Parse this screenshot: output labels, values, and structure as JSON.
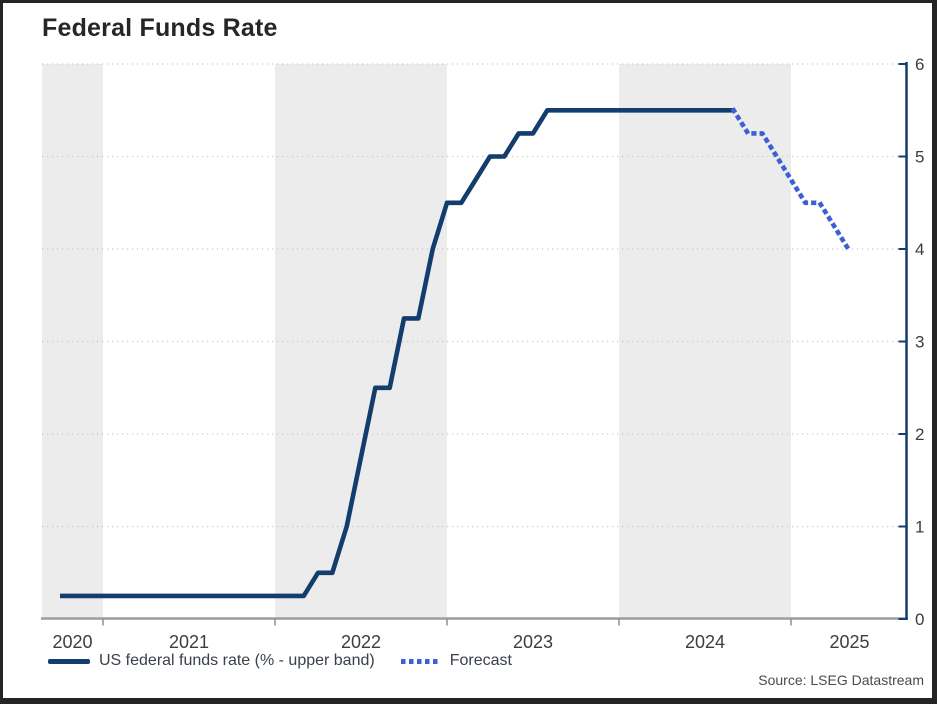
{
  "frame": {
    "title": "Federal Funds Rate",
    "source": "Source: LSEG Datastream"
  },
  "legend": {
    "items": [
      {
        "label": "US federal funds rate (% - upper band)",
        "style": "solid",
        "color": "#123d6c"
      },
      {
        "label": "Forecast",
        "style": "dotted",
        "color": "#3c5fd6"
      }
    ]
  },
  "colors": {
    "line_actual": "#123d6c",
    "line_forecast": "#3c5fd6",
    "band": "#ececec",
    "gridline": "#c9c9c9",
    "x_axis": "#9c9c9c",
    "x_tick": "#8f8f8f",
    "y_axis": "#123d6c",
    "tick_label": "#3d3d3d",
    "title_text": "#262626",
    "legend_text": "#39404a",
    "source_text": "#4b4b4b"
  },
  "chart_data": {
    "type": "line",
    "title": "Federal Funds Rate",
    "xlabel": "",
    "ylabel": "",
    "ylim": [
      0,
      6
    ],
    "y_ticks": [
      0,
      1,
      2,
      3,
      4,
      5,
      6
    ],
    "y_axis_side": "right",
    "x_tick_labels": [
      "2020",
      "2021",
      "2022",
      "2023",
      "2024",
      "2025"
    ],
    "first_label_year": 2020,
    "year_boundaries": [
      2021,
      2022,
      2023,
      2024,
      2025
    ],
    "shaded_years": [
      2020,
      2022,
      2024
    ],
    "grid": "horizontal-dotted",
    "legend_position": "bottom-left",
    "series": [
      {
        "name": "US federal funds rate (% - upper band)",
        "style": "solid",
        "color": "#123d6c",
        "points": [
          [
            "2020-09",
            0.25
          ],
          [
            "2022-02",
            0.25
          ],
          [
            "2022-03",
            0.5
          ],
          [
            "2022-04",
            0.5
          ],
          [
            "2022-05",
            1.0
          ],
          [
            "2022-06",
            1.75
          ],
          [
            "2022-07",
            2.5
          ],
          [
            "2022-08",
            2.5
          ],
          [
            "2022-09",
            3.25
          ],
          [
            "2022-10",
            3.25
          ],
          [
            "2022-11",
            4.0
          ],
          [
            "2022-12",
            4.5
          ],
          [
            "2023-01",
            4.5
          ],
          [
            "2023-02",
            4.75
          ],
          [
            "2023-03",
            5.0
          ],
          [
            "2023-04",
            5.0
          ],
          [
            "2023-05",
            5.25
          ],
          [
            "2023-06",
            5.25
          ],
          [
            "2023-07",
            5.5
          ],
          [
            "2024-08",
            5.5
          ]
        ]
      },
      {
        "name": "Forecast",
        "style": "dotted",
        "color": "#3c5fd6",
        "points": [
          [
            "2024-08",
            5.5
          ],
          [
            "2024-09",
            5.25
          ],
          [
            "2024-10",
            5.25
          ],
          [
            "2024-11",
            5.0
          ],
          [
            "2024-12",
            4.75
          ],
          [
            "2025-01",
            4.5
          ],
          [
            "2025-02",
            4.5
          ],
          [
            "2025-03",
            4.25
          ],
          [
            "2025-04",
            4.0
          ]
        ]
      }
    ]
  }
}
